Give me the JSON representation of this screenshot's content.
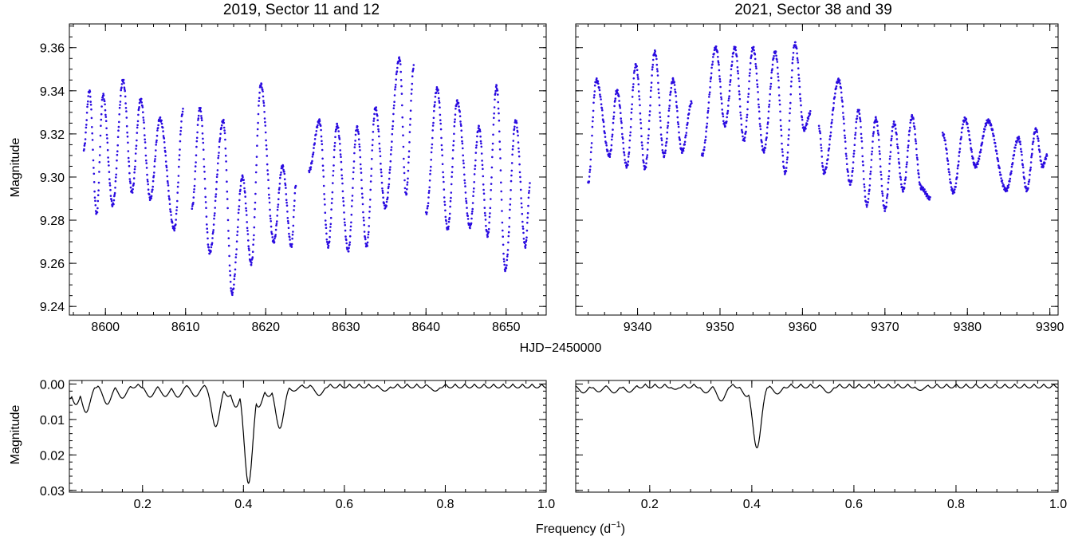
{
  "chart_data": [
    {
      "type": "scatter",
      "title": "2019, Sector 11 and 12",
      "ylabel": "Magnitude",
      "xlim": [
        8595.5,
        8655
      ],
      "ylim": [
        9.371,
        9.236
      ],
      "xticks": [
        8600,
        8610,
        8620,
        8630,
        8640,
        8650
      ],
      "yticks": [
        9.24,
        9.26,
        9.28,
        9.3,
        9.32,
        9.34,
        9.36
      ],
      "xtick_labels": [
        "8600",
        "8610",
        "8620",
        "8630",
        "8640",
        "8650"
      ],
      "ytick_labels": [
        "9.24",
        "9.26",
        "9.28",
        "9.30",
        "9.32",
        "9.34",
        "9.36"
      ],
      "color": "#2a0be0",
      "light_curve": {
        "segments": [
          [
            8597.3,
            8609.7
          ],
          [
            8610.8,
            8623.8
          ],
          [
            8625.4,
            8638.5
          ],
          [
            8640.0,
            8653.0
          ]
        ],
        "extrema": [
          [
            8597.3,
            9.313
          ],
          [
            8598.0,
            9.34
          ],
          [
            8598.9,
            9.283
          ],
          [
            8599.7,
            9.338
          ],
          [
            8600.9,
            9.287
          ],
          [
            8602.2,
            9.345
          ],
          [
            8603.3,
            9.293
          ],
          [
            8604.4,
            9.336
          ],
          [
            8605.6,
            9.29
          ],
          [
            8606.8,
            9.327
          ],
          [
            8608.6,
            9.276
          ],
          [
            8609.7,
            9.331
          ],
          [
            8610.8,
            9.286
          ],
          [
            8611.8,
            9.332
          ],
          [
            8613.0,
            9.265
          ],
          [
            8614.7,
            9.326
          ],
          [
            8615.8,
            9.246
          ],
          [
            8617.1,
            9.3
          ],
          [
            8618.2,
            9.26
          ],
          [
            8619.4,
            9.343
          ],
          [
            8621.0,
            9.27
          ],
          [
            8622.1,
            9.305
          ],
          [
            8623.2,
            9.268
          ],
          [
            8623.8,
            9.297
          ],
          [
            8625.4,
            9.303
          ],
          [
            8626.7,
            9.326
          ],
          [
            8627.8,
            9.268
          ],
          [
            8628.9,
            9.324
          ],
          [
            8630.3,
            9.266
          ],
          [
            8631.4,
            9.323
          ],
          [
            8632.6,
            9.268
          ],
          [
            8633.7,
            9.332
          ],
          [
            8634.9,
            9.286
          ],
          [
            8636.7,
            9.355
          ],
          [
            8637.5,
            9.292
          ],
          [
            8638.5,
            9.352
          ],
          [
            8640.0,
            9.283
          ],
          [
            8641.4,
            9.341
          ],
          [
            8642.7,
            9.276
          ],
          [
            8643.9,
            9.335
          ],
          [
            8645.5,
            9.277
          ],
          [
            8646.6,
            9.323
          ],
          [
            8647.7,
            9.273
          ],
          [
            8648.8,
            9.342
          ],
          [
            8649.9,
            9.257
          ],
          [
            8651.2,
            9.326
          ],
          [
            8652.4,
            9.268
          ],
          [
            8653.0,
            9.297
          ]
        ]
      }
    },
    {
      "type": "scatter",
      "title": "2021, Sector 38 and 39",
      "xlim": [
        9332.5,
        9391
      ],
      "ylim": [
        9.371,
        9.236
      ],
      "xticks": [
        9340,
        9350,
        9360,
        9370,
        9380,
        9390
      ],
      "yticks": [
        9.24,
        9.26,
        9.28,
        9.3,
        9.32,
        9.34,
        9.36
      ],
      "xtick_labels": [
        "9340",
        "9350",
        "9360",
        "9370",
        "9380",
        "9390"
      ],
      "color": "#2a0be0",
      "light_curve": {
        "segments": [
          [
            9334.0,
            9346.8
          ],
          [
            9347.8,
            9361.0
          ],
          [
            9362.0,
            9375.5
          ],
          [
            9377.0,
            9389.7
          ]
        ],
        "extrema": [
          [
            9334.0,
            9.297
          ],
          [
            9335.0,
            9.345
          ],
          [
            9336.6,
            9.31
          ],
          [
            9337.5,
            9.34
          ],
          [
            9338.7,
            9.305
          ],
          [
            9339.8,
            9.352
          ],
          [
            9340.9,
            9.304
          ],
          [
            9342.1,
            9.358
          ],
          [
            9343.2,
            9.31
          ],
          [
            9344.3,
            9.345
          ],
          [
            9345.4,
            9.312
          ],
          [
            9346.6,
            9.335
          ],
          [
            9347.8,
            9.31
          ],
          [
            9349.5,
            9.36
          ],
          [
            9350.6,
            9.324
          ],
          [
            9351.8,
            9.36
          ],
          [
            9352.9,
            9.317
          ],
          [
            9354.0,
            9.36
          ],
          [
            9355.3,
            9.312
          ],
          [
            9356.7,
            9.358
          ],
          [
            9357.9,
            9.302
          ],
          [
            9359.1,
            9.362
          ],
          [
            9360.2,
            9.322
          ],
          [
            9361.0,
            9.33
          ],
          [
            9362.0,
            9.323
          ],
          [
            9362.6,
            9.302
          ],
          [
            9364.4,
            9.345
          ],
          [
            9365.8,
            9.297
          ],
          [
            9366.8,
            9.331
          ],
          [
            9367.8,
            9.287
          ],
          [
            9368.9,
            9.327
          ],
          [
            9370.0,
            9.285
          ],
          [
            9371.1,
            9.325
          ],
          [
            9372.2,
            9.294
          ],
          [
            9373.3,
            9.328
          ],
          [
            9374.4,
            9.295
          ],
          [
            9375.5,
            9.29
          ],
          [
            9377.0,
            9.32
          ],
          [
            9378.3,
            9.293
          ],
          [
            9379.7,
            9.327
          ],
          [
            9381.0,
            9.305
          ],
          [
            9382.5,
            9.326
          ],
          [
            9384.7,
            9.294
          ],
          [
            9386.2,
            9.318
          ],
          [
            9387.2,
            9.294
          ],
          [
            9388.3,
            9.322
          ],
          [
            9389.1,
            9.305
          ],
          [
            9389.7,
            9.31
          ]
        ]
      }
    },
    {
      "type": "line",
      "ylabel": "Magnitude",
      "xlim": [
        0.055,
        1.0
      ],
      "ylim": [
        -0.001,
        0.0305
      ],
      "xticks": [
        0.2,
        0.4,
        0.6,
        0.8,
        1.0
      ],
      "yticks": [
        0.0,
        0.01,
        0.02,
        0.03
      ],
      "xtick_labels": [
        "0.2",
        "0.4",
        "0.6",
        "0.8",
        "1.0"
      ],
      "ytick_labels": [
        "0.00",
        "0.01",
        "0.02",
        "0.03"
      ],
      "color": "#000000",
      "peaks": [
        [
          0.055,
          0.0042
        ],
        [
          0.068,
          0.0058
        ],
        [
          0.088,
          0.008
        ],
        [
          0.13,
          0.0057
        ],
        [
          0.16,
          0.004
        ],
        [
          0.215,
          0.0037
        ],
        [
          0.245,
          0.0035
        ],
        [
          0.27,
          0.0037
        ],
        [
          0.305,
          0.0035
        ],
        [
          0.345,
          0.012
        ],
        [
          0.37,
          0.0035
        ],
        [
          0.385,
          0.0065
        ],
        [
          0.41,
          0.028
        ],
        [
          0.43,
          0.0065
        ],
        [
          0.45,
          0.0035
        ],
        [
          0.472,
          0.0125
        ],
        [
          0.5,
          0.002
        ],
        [
          0.55,
          0.0032
        ],
        [
          0.68,
          0.002
        ],
        [
          0.78,
          0.002
        ]
      ]
    },
    {
      "type": "line",
      "xlim": [
        0.055,
        1.0
      ],
      "ylim": [
        -0.001,
        0.0305
      ],
      "xticks": [
        0.2,
        0.4,
        0.6,
        0.8,
        1.0
      ],
      "yticks": [
        0.0,
        0.01,
        0.02,
        0.03
      ],
      "xtick_labels": [
        "0.2",
        "0.4",
        "0.6",
        "0.8",
        "1.0"
      ],
      "color": "#000000",
      "peaks": [
        [
          0.07,
          0.0025
        ],
        [
          0.1,
          0.0022
        ],
        [
          0.13,
          0.0025
        ],
        [
          0.16,
          0.0023
        ],
        [
          0.25,
          0.0015
        ],
        [
          0.31,
          0.0025
        ],
        [
          0.34,
          0.0048
        ],
        [
          0.39,
          0.0035
        ],
        [
          0.41,
          0.018
        ],
        [
          0.45,
          0.0028
        ],
        [
          0.55,
          0.0025
        ],
        [
          0.73,
          0.0018
        ]
      ]
    }
  ],
  "shared": {
    "light_curve_xlabel": "HJD−2450000",
    "frequency_xlabel_main": "Frequency (d",
    "frequency_xlabel_sup": "−1",
    "frequency_xlabel_tail": ")"
  }
}
